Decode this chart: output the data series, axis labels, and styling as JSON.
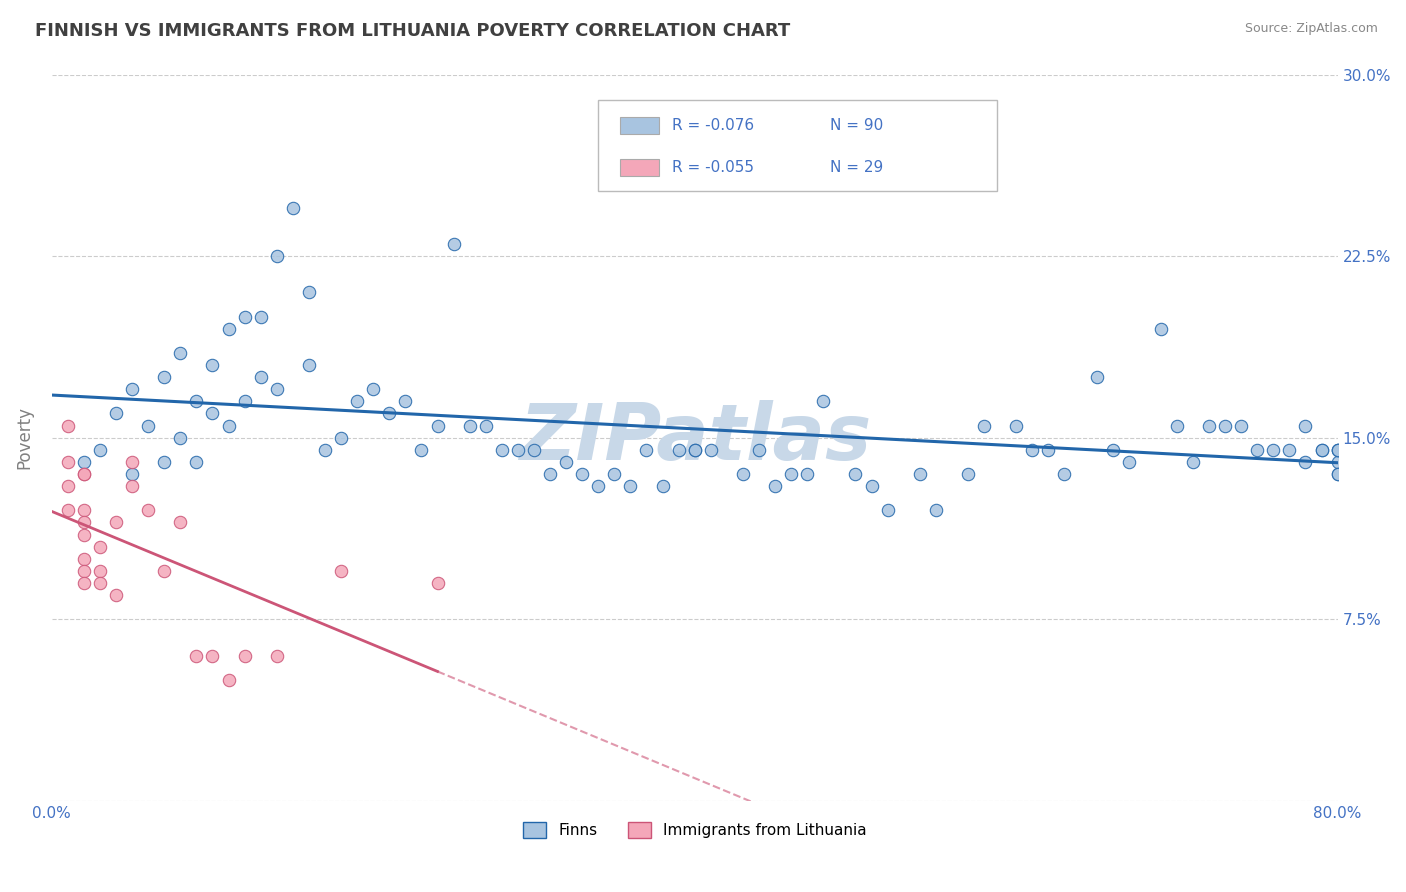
{
  "title": "FINNISH VS IMMIGRANTS FROM LITHUANIA POVERTY CORRELATION CHART",
  "source": "Source: ZipAtlas.com",
  "ylabel_label": "Poverty",
  "x_min": 0.0,
  "x_max": 0.8,
  "y_min": 0.0,
  "y_max": 0.3,
  "x_ticks": [
    0.0,
    0.1,
    0.2,
    0.3,
    0.4,
    0.5,
    0.6,
    0.7,
    0.8
  ],
  "x_tick_labels": [
    "0.0%",
    "",
    "",
    "",
    "",
    "",
    "",
    "",
    "80.0%"
  ],
  "y_ticks": [
    0.0,
    0.075,
    0.15,
    0.225,
    0.3
  ],
  "y_tick_labels": [
    "",
    "7.5%",
    "15.0%",
    "22.5%",
    "30.0%"
  ],
  "finns_R": -0.076,
  "finns_N": 90,
  "lithuania_R": -0.055,
  "lithuania_N": 29,
  "legend_label_finns": "Finns",
  "legend_label_lithuania": "Immigrants from Lithuania",
  "scatter_color_finns": "#a8c4e0",
  "scatter_color_lithuania": "#f4a7b9",
  "line_color_finns": "#2266aa",
  "line_color_lithuania": "#cc5577",
  "watermark_text": "ZIPatlas",
  "background_color": "#ffffff",
  "finns_x": [
    0.02,
    0.03,
    0.04,
    0.05,
    0.05,
    0.06,
    0.07,
    0.07,
    0.08,
    0.08,
    0.09,
    0.09,
    0.1,
    0.1,
    0.11,
    0.11,
    0.12,
    0.12,
    0.13,
    0.13,
    0.14,
    0.14,
    0.15,
    0.16,
    0.16,
    0.17,
    0.18,
    0.19,
    0.2,
    0.21,
    0.22,
    0.23,
    0.24,
    0.25,
    0.26,
    0.27,
    0.28,
    0.29,
    0.3,
    0.31,
    0.32,
    0.33,
    0.34,
    0.35,
    0.36,
    0.37,
    0.38,
    0.39,
    0.4,
    0.4,
    0.41,
    0.43,
    0.44,
    0.45,
    0.46,
    0.47,
    0.48,
    0.5,
    0.51,
    0.52,
    0.54,
    0.55,
    0.57,
    0.58,
    0.6,
    0.61,
    0.62,
    0.63,
    0.65,
    0.66,
    0.67,
    0.69,
    0.7,
    0.71,
    0.72,
    0.73,
    0.74,
    0.75,
    0.76,
    0.77,
    0.78,
    0.78,
    0.79,
    0.79,
    0.8,
    0.8,
    0.8,
    0.8,
    0.8,
    0.8
  ],
  "finns_y": [
    0.14,
    0.145,
    0.16,
    0.135,
    0.17,
    0.155,
    0.175,
    0.14,
    0.15,
    0.185,
    0.165,
    0.14,
    0.18,
    0.16,
    0.195,
    0.155,
    0.2,
    0.165,
    0.2,
    0.175,
    0.225,
    0.17,
    0.245,
    0.18,
    0.21,
    0.145,
    0.15,
    0.165,
    0.17,
    0.16,
    0.165,
    0.145,
    0.155,
    0.23,
    0.155,
    0.155,
    0.145,
    0.145,
    0.145,
    0.135,
    0.14,
    0.135,
    0.13,
    0.135,
    0.13,
    0.145,
    0.13,
    0.145,
    0.145,
    0.145,
    0.145,
    0.135,
    0.145,
    0.13,
    0.135,
    0.135,
    0.165,
    0.135,
    0.13,
    0.12,
    0.135,
    0.12,
    0.135,
    0.155,
    0.155,
    0.145,
    0.145,
    0.135,
    0.175,
    0.145,
    0.14,
    0.195,
    0.155,
    0.14,
    0.155,
    0.155,
    0.155,
    0.145,
    0.145,
    0.145,
    0.14,
    0.155,
    0.145,
    0.145,
    0.14,
    0.145,
    0.135,
    0.145,
    0.135,
    0.145
  ],
  "lith_x": [
    0.01,
    0.01,
    0.01,
    0.01,
    0.02,
    0.02,
    0.02,
    0.02,
    0.02,
    0.02,
    0.02,
    0.02,
    0.03,
    0.03,
    0.03,
    0.04,
    0.04,
    0.05,
    0.05,
    0.06,
    0.07,
    0.08,
    0.09,
    0.1,
    0.11,
    0.12,
    0.14,
    0.18,
    0.24
  ],
  "lith_y": [
    0.155,
    0.14,
    0.13,
    0.12,
    0.135,
    0.135,
    0.12,
    0.115,
    0.11,
    0.1,
    0.095,
    0.09,
    0.105,
    0.095,
    0.09,
    0.115,
    0.085,
    0.13,
    0.14,
    0.12,
    0.095,
    0.115,
    0.06,
    0.06,
    0.05,
    0.06,
    0.06,
    0.095,
    0.09
  ],
  "lith_line_end_x": 0.24,
  "watermark_color": "#c8d8e8",
  "grid_color": "#cccccc",
  "tick_label_color": "#4472c4",
  "title_color": "#404040",
  "axis_label_color": "#808080"
}
